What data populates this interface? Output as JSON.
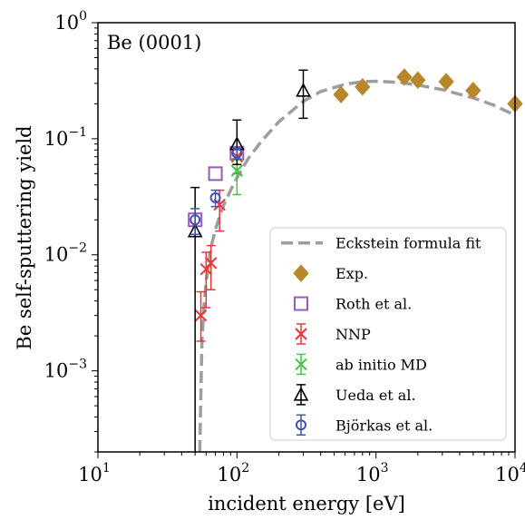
{
  "chart_data": {
    "type": "scatter",
    "xscale": "log",
    "yscale": "log",
    "xlim": [
      10,
      10000
    ],
    "ylim": [
      0.0002,
      1
    ],
    "xlabel": "incident energy [eV]",
    "ylabel": "Be self-sputtering yield",
    "annotation": "Be (0001)",
    "x_ticks": [
      {
        "base": "10",
        "exp": "1",
        "value": 10
      },
      {
        "base": "10",
        "exp": "2",
        "value": 100
      },
      {
        "base": "10",
        "exp": "3",
        "value": 1000
      },
      {
        "base": "10",
        "exp": "4",
        "value": 10000
      }
    ],
    "y_ticks": [
      {
        "base": "10",
        "exp": "−3",
        "value": 0.001
      },
      {
        "base": "10",
        "exp": "−2",
        "value": 0.01
      },
      {
        "base": "10",
        "exp": "−1",
        "value": 0.1
      },
      {
        "base": "10",
        "exp": "0",
        "value": 1
      }
    ],
    "grid": false,
    "legend_position": "lower-right",
    "series": [
      {
        "name": "Eckstein formula fit",
        "kind": "line",
        "color": "#9e9e9e",
        "x": [
          54,
          56,
          58,
          60,
          63,
          66,
          70,
          75,
          80,
          90,
          100,
          120,
          150,
          200,
          300,
          400,
          600,
          800,
          1000,
          1500,
          2000,
          3000,
          5000,
          7000,
          10000
        ],
        "y": [
          0.0002,
          0.0018,
          0.0037,
          0.0058,
          0.0092,
          0.0125,
          0.0165,
          0.0215,
          0.0265,
          0.036,
          0.046,
          0.067,
          0.095,
          0.14,
          0.21,
          0.255,
          0.295,
          0.31,
          0.313,
          0.305,
          0.29,
          0.265,
          0.225,
          0.195,
          0.16
        ]
      },
      {
        "name": "Exp.",
        "kind": "diamond",
        "color": "#b8862b",
        "x": [
          560,
          800,
          1600,
          2000,
          3200,
          5000,
          10000
        ],
        "y": [
          0.24,
          0.28,
          0.34,
          0.32,
          0.31,
          0.26,
          0.2
        ]
      },
      {
        "name": "Roth et al.",
        "kind": "square",
        "color": "#9b59b6",
        "x": [
          50,
          70,
          100
        ],
        "y": [
          0.02,
          0.05,
          0.075
        ]
      },
      {
        "name": "NNP",
        "kind": "cross",
        "color": "#e53935",
        "x": [
          55,
          60,
          65,
          75,
          100
        ],
        "y": [
          0.003,
          0.0075,
          0.0085,
          0.027,
          0.07
        ],
        "ylow": [
          0.0018,
          0.0035,
          0.005,
          0.016,
          0.05
        ],
        "yhigh": [
          0.0048,
          0.0105,
          0.012,
          0.036,
          0.083
        ]
      },
      {
        "name": "ab initio MD",
        "kind": "cross",
        "color": "#43c443",
        "x": [
          100
        ],
        "y": [
          0.053
        ],
        "ylow": [
          0.033
        ],
        "yhigh": [
          0.066
        ]
      },
      {
        "name": "Ueda et al.",
        "kind": "triangle",
        "color": "#000000",
        "x": [
          50,
          100,
          300
        ],
        "y": [
          0.016,
          0.09,
          0.26
        ],
        "ylow": [
          0.0002,
          0.06,
          0.15
        ],
        "yhigh": [
          0.038,
          0.145,
          0.39
        ]
      },
      {
        "name": "Björkas et al.",
        "kind": "circle",
        "color": "#3f51b5",
        "x": [
          50,
          70,
          100
        ],
        "y": [
          0.02,
          0.031,
          0.075
        ],
        "ylow": [
          0.015,
          0.026,
          0.067
        ],
        "yhigh": [
          0.025,
          0.036,
          0.083
        ]
      }
    ]
  }
}
